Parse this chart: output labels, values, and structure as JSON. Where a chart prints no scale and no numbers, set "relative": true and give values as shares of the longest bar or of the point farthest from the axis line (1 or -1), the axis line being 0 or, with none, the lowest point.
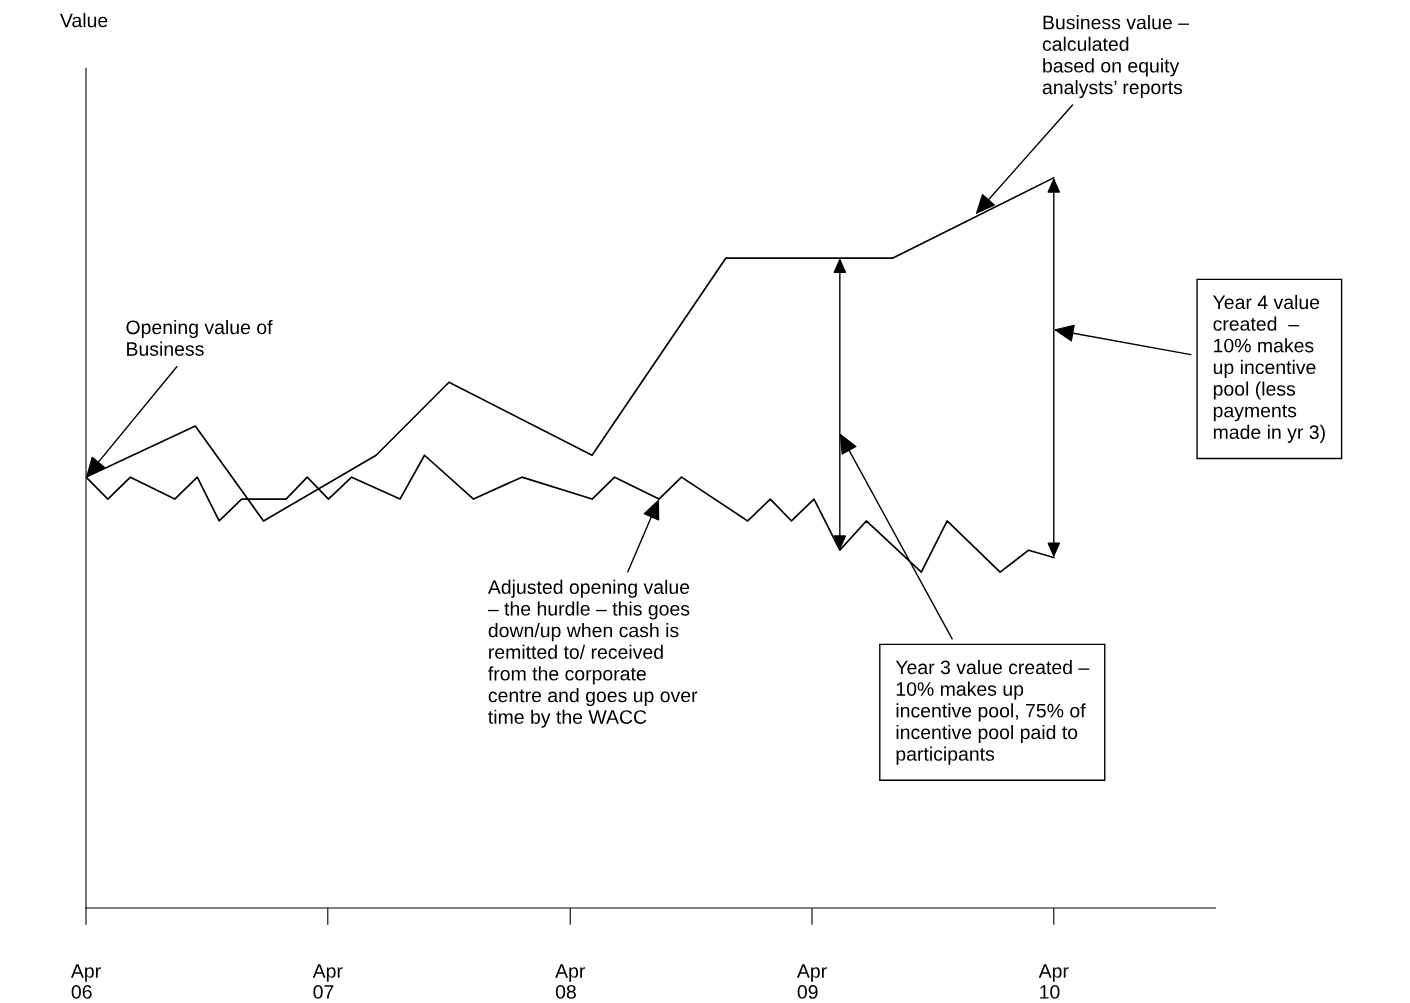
{
  "chart_data": {
    "type": "line",
    "relative": true,
    "legend": false,
    "grid": false,
    "xlim": [
      "2006-04-01",
      "2010-12-01"
    ],
    "xticks": [
      {
        "value": "2006-04-01",
        "label": "Apr\n06"
      },
      {
        "value": "2007-04-01",
        "label": "Apr\n07"
      },
      {
        "value": "2008-04-01",
        "label": "Apr\n08"
      },
      {
        "value": "2009-04-01",
        "label": "Apr\n09"
      },
      {
        "value": "2010-04-01",
        "label": "Apr\n10"
      }
    ],
    "series": [
      {
        "color": "#000000",
        "x": [
          "2006-04-01",
          "2006-09-13",
          "2006-12-25",
          "2007-06-13",
          "2007-10-01",
          "2008-05-04",
          "2008-11-22",
          "2009-08-01",
          "2010-04-01"
        ],
        "values": [
          0.59,
          0.66,
          0.53,
          0.62,
          0.72,
          0.62,
          0.89,
          0.89,
          1.0
        ]
      },
      {
        "color": "#000000",
        "x": [
          "2006-04-01",
          "2006-05-04",
          "2006-06-07",
          "2006-08-13",
          "2006-09-16",
          "2006-10-19",
          "2006-11-22",
          "2007-01-28",
          "2007-03-01",
          "2007-04-02",
          "2007-05-07",
          "2007-07-19",
          "2007-08-25",
          "2007-11-07",
          "2008-01-19",
          "2008-05-04",
          "2008-06-07",
          "2008-08-13",
          "2008-09-16",
          "2008-12-25",
          "2009-01-28",
          "2009-03-01",
          "2009-04-04",
          "2009-05-13",
          "2009-06-22",
          "2009-09-13",
          "2009-10-22",
          "2010-01-10",
          "2010-02-22",
          "2010-04-01"
        ],
        "values": [
          0.59,
          0.56,
          0.59,
          0.56,
          0.59,
          0.53,
          0.56,
          0.56,
          0.59,
          0.56,
          0.59,
          0.56,
          0.62,
          0.56,
          0.59,
          0.56,
          0.59,
          0.56,
          0.59,
          0.53,
          0.56,
          0.53,
          0.56,
          0.49,
          0.53,
          0.46,
          0.53,
          0.46,
          0.49,
          0.48
        ]
      }
    ],
    "annotations": [
      "Value",
      {
        "text": "Opening value of\nBusiness",
        "x": "2006-04-01",
        "y": 0.59
      },
      {
        "text": "Business value –\ncalculated\nbased on equity\nanalysts’ reports",
        "x": "2009-12-04",
        "y": 0.95
      },
      {
        "text": "Adjusted opening value\n– the hurdle – this goes\ndown/up when cash is\nremitted to/ received\nfrom the corporate\ncentre and goes up over\ntime by the WACC",
        "x": "2008-08-13",
        "y": 0.56
      },
      "Year 3 value created –\n10% makes up\nincentive pool, 75% of\nincentive pool paid to\nparticipants",
      "Year 4 value\ncreated  –\n10% makes\nup incentive\npool (less\npayments\nmade in yr 3)"
    ]
  }
}
